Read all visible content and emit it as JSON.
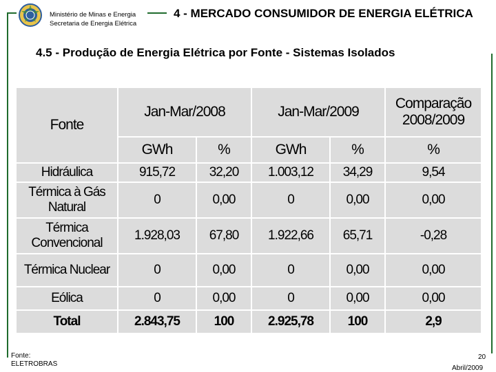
{
  "header": {
    "ministry_line1": "Ministério de Minas e Energia",
    "ministry_line2": "Secretaria de Energia Elétrica",
    "section_title": "4 - MERCADO CONSUMIDOR DE ENERGIA ELÉTRICA",
    "subtitle": "4.5 - Produção de Energia Elétrica por Fonte - Sistemas Isolados"
  },
  "table": {
    "col_fonte": "Fonte",
    "period1": "Jan-Mar/2008",
    "period2": "Jan-Mar/2009",
    "comparison": "Comparação 2008/2009",
    "sub_gwh": "GWh",
    "sub_pct": "%",
    "rows": [
      {
        "label": "Hidráulica",
        "v2008_gwh": "915,72",
        "v2008_pct": "32,20",
        "v2009_gwh": "1.003,12",
        "v2009_pct": "34,29",
        "comp": "9,54"
      },
      {
        "label": "Térmica à Gás Natural",
        "v2008_gwh": "0",
        "v2008_pct": "0,00",
        "v2009_gwh": "0",
        "v2009_pct": "0,00",
        "comp": "0,00"
      },
      {
        "label": "Térmica Convencional",
        "v2008_gwh": "1.928,03",
        "v2008_pct": "67,80",
        "v2009_gwh": "1.922,66",
        "v2009_pct": "65,71",
        "comp": "-0,28"
      },
      {
        "label": "Térmica Nuclear",
        "v2008_gwh": "0",
        "v2008_pct": "0,00",
        "v2009_gwh": "0",
        "v2009_pct": "0,00",
        "comp": "0,00"
      },
      {
        "label": "Eólica",
        "v2008_gwh": "0",
        "v2008_pct": "0,00",
        "v2009_gwh": "0",
        "v2009_pct": "0,00",
        "comp": "0,00"
      },
      {
        "label": "Total",
        "v2008_gwh": "2.843,75",
        "v2008_pct": "100",
        "v2009_gwh": "2.925,78",
        "v2009_pct": "100",
        "comp": "2,9"
      }
    ]
  },
  "footer": {
    "fonte_label": "Fonte:",
    "fonte_source": "ELETROBRAS",
    "page_number": "20",
    "date": "Abril/2009"
  },
  "colors": {
    "frame_green": "#1f6b2c",
    "cell_gray": "#dcdcdc"
  }
}
